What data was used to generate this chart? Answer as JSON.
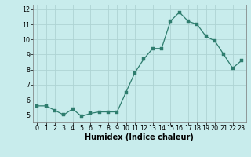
{
  "x": [
    0,
    1,
    2,
    3,
    4,
    5,
    6,
    7,
    8,
    9,
    10,
    11,
    12,
    13,
    14,
    15,
    16,
    17,
    18,
    19,
    20,
    21,
    22,
    23
  ],
  "y": [
    5.6,
    5.6,
    5.3,
    5.0,
    5.4,
    4.9,
    5.1,
    5.2,
    5.2,
    5.2,
    6.5,
    7.8,
    8.7,
    9.4,
    9.4,
    11.2,
    11.8,
    11.2,
    11.0,
    10.2,
    9.9,
    9.0,
    8.1,
    8.6
  ],
  "line_color": "#2e7d6e",
  "marker": "s",
  "marker_size": 2.2,
  "bg_color": "#c8ecec",
  "grid_color": "#aed4d4",
  "xlabel": "Humidex (Indice chaleur)",
  "xlim": [
    -0.5,
    23.5
  ],
  "ylim": [
    4.5,
    12.3
  ],
  "yticks": [
    5,
    6,
    7,
    8,
    9,
    10,
    11,
    12
  ],
  "xticks": [
    0,
    1,
    2,
    3,
    4,
    5,
    6,
    7,
    8,
    9,
    10,
    11,
    12,
    13,
    14,
    15,
    16,
    17,
    18,
    19,
    20,
    21,
    22,
    23
  ],
  "tick_fontsize": 5.8,
  "xlabel_fontsize": 7.0,
  "linewidth": 0.9
}
